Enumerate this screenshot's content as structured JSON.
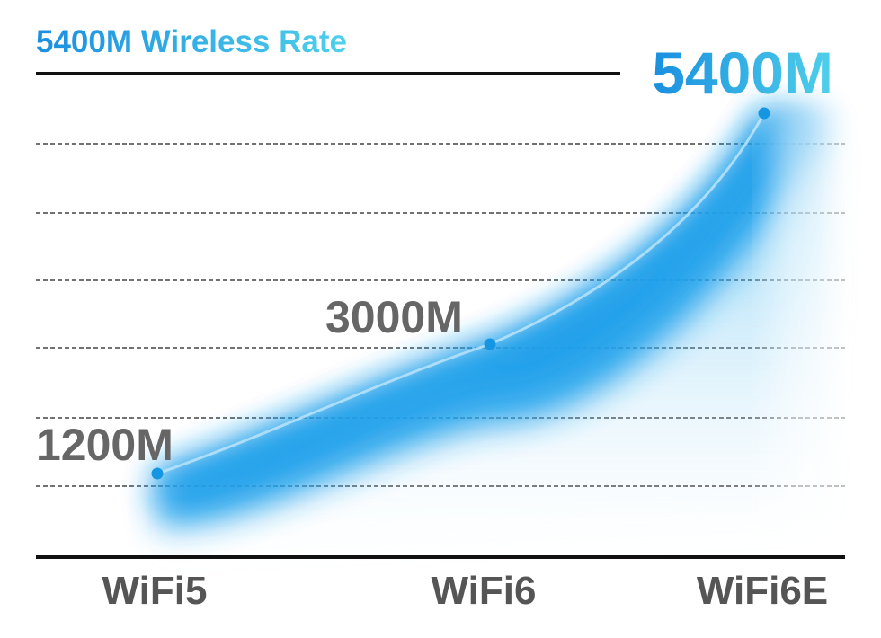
{
  "chart_data": {
    "type": "area",
    "title": "5400M Wireless Rate",
    "categories": [
      "WiFi5",
      "WiFi6",
      "WiFi6E"
    ],
    "values": [
      1200,
      3000,
      5400
    ],
    "value_labels": [
      "1200M",
      "3000M",
      "5400M"
    ],
    "highlight_index": 2,
    "grid": true,
    "legend": "none"
  },
  "colors": {
    "accent_start": "#1a8fe0",
    "accent_end": "#4fd0ea",
    "curve_fill": "#23a2ec",
    "point": "#1596e2",
    "value_label": "#666666",
    "category_label": "#555555",
    "axis": "#111111",
    "grid": "#444444"
  }
}
